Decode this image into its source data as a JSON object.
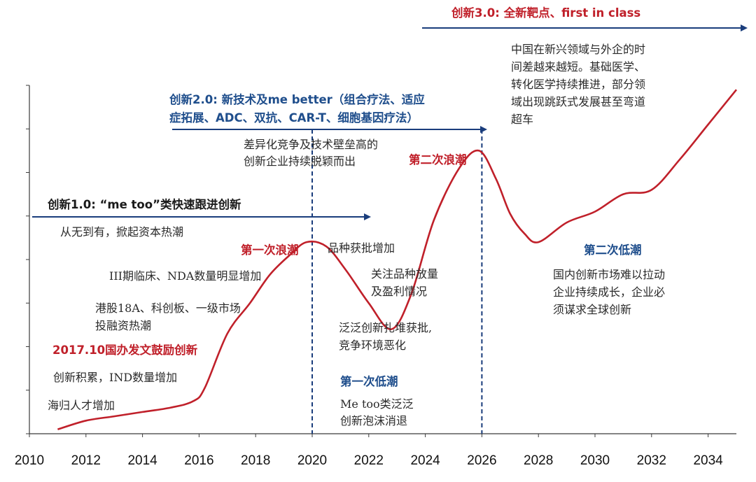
{
  "colors": {
    "curve": "#c0202a",
    "arrow": "#1a3d7c",
    "axis": "#3a3a3a",
    "dashed": "#1a3d7c",
    "red_text": "#c0202a",
    "blue_text": "#1f4e8c",
    "black_text": "#2a2a2a"
  },
  "chart_data": {
    "type": "line",
    "xlim": [
      2010,
      2035
    ],
    "ylim": [
      0,
      8
    ],
    "ticks_x": [
      2010,
      2012,
      2014,
      2016,
      2018,
      2020,
      2022,
      2024,
      2026,
      2028,
      2030,
      2032,
      2034
    ],
    "grid": false,
    "series": [
      {
        "x": [
          2011,
          2012,
          2013,
          2014,
          2015,
          2015.8,
          2016.2,
          2017,
          2017.8,
          2018.5,
          2019.2,
          2019.8,
          2020.5,
          2021.2,
          2022,
          2022.8,
          2023.5,
          2024.3,
          2025.2,
          2025.9,
          2026.5,
          2027,
          2027.5,
          2028,
          2029,
          2030,
          2031,
          2032,
          2033,
          2034,
          2035
        ],
        "y": [
          0.1,
          0.3,
          0.4,
          0.5,
          0.6,
          0.75,
          1.05,
          2.3,
          3.0,
          3.65,
          4.1,
          4.4,
          4.3,
          3.75,
          3.0,
          2.4,
          3.2,
          4.9,
          6.1,
          6.5,
          5.85,
          5.05,
          4.6,
          4.4,
          4.85,
          5.1,
          5.5,
          5.6,
          6.3,
          7.1,
          7.9
        ]
      }
    ],
    "vlines": [
      2020,
      2026
    ]
  },
  "eras": [
    {
      "title": "创新1.0: “me too”类快速跟进创新",
      "x_start": 2010,
      "x_end": 2022
    },
    {
      "title_line1": "创新2.0: 新技术及me better（组合疗法、适应",
      "title_line2": "症拓展、ADC、双抗、CAR-T、细胞基因疗法）",
      "x_start": 2015,
      "x_end": 2026
    },
    {
      "title": "创新3.0: 全新靶点、first in class",
      "x_start": 2023.3,
      "x_end": 2035
    }
  ],
  "annotations": {
    "haigui": "海归人才增加",
    "chuangxin_jilei": "创新积累，IND数量增加",
    "policy_2017": "2017.10国办发文鼓励创新",
    "ganggu_1": "港股18A、科创板、一级市场",
    "ganggu_2": "投融资热潮",
    "phase3": "III期临床、NDA数量明显增加",
    "wave1": "第一次浪潮",
    "cong_wu": "从无到有，掀起资本热潮",
    "pinzhong": "品种获批增加",
    "guanzhu_1": "关注品种放量",
    "guanzhu_2": "及盈利情况",
    "fanfan_1": "泛泛创新扎堆获批,",
    "fanfan_2": "竞争环境恶化",
    "trough1": "第一次低潮",
    "metoo_1": "Me too类泛泛",
    "metoo_2": "创新泡沫消退",
    "chayi_1": "差异化竞争及技术壁垒高的",
    "chayi_2": "创新企业持续脱颖而出",
    "wave2": "第二次浪潮",
    "china_1": "中国在新兴领域与外企的时",
    "china_2": "间差越来越短。基础医学、",
    "china_3": "转化医学持续推进，部分领",
    "china_4": "域出现跳跃式发展甚至弯道",
    "china_5": "超车",
    "trough2": "第二次低潮",
    "guonei_1": "国内创新市场难以拉动",
    "guonei_2": "企业持续成长，企业必",
    "guonei_3": "须谋求全球创新"
  }
}
